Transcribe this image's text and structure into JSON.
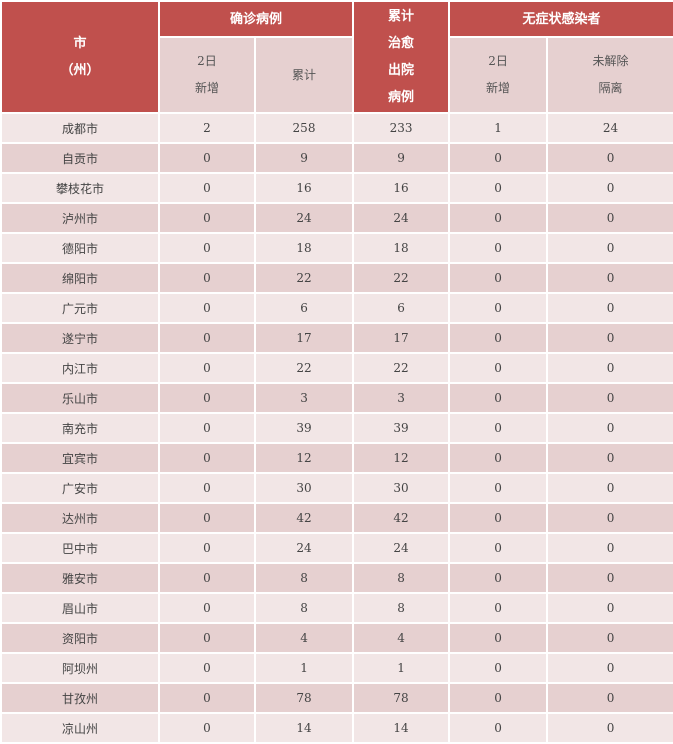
{
  "header": {
    "city": [
      "市",
      "（州）"
    ],
    "confirmed": "确诊病例",
    "confirmed_new": [
      "2日",
      "新增"
    ],
    "confirmed_total": "累计",
    "cured": [
      "累计",
      "治愈",
      "出院",
      "病例"
    ],
    "asymptomatic": "无症状感染者",
    "asym_new": [
      "2日",
      "新增"
    ],
    "asym_unreleased": [
      "未解除",
      "隔离"
    ]
  },
  "rows": [
    [
      "成都市",
      "2",
      "258",
      "233",
      "1",
      "24"
    ],
    [
      "自贡市",
      "0",
      "9",
      "9",
      "0",
      "0"
    ],
    [
      "攀枝花市",
      "0",
      "16",
      "16",
      "0",
      "0"
    ],
    [
      "泸州市",
      "0",
      "24",
      "24",
      "0",
      "0"
    ],
    [
      "德阳市",
      "0",
      "18",
      "18",
      "0",
      "0"
    ],
    [
      "绵阳市",
      "0",
      "22",
      "22",
      "0",
      "0"
    ],
    [
      "广元市",
      "0",
      "6",
      "6",
      "0",
      "0"
    ],
    [
      "遂宁市",
      "0",
      "17",
      "17",
      "0",
      "0"
    ],
    [
      "内江市",
      "0",
      "22",
      "22",
      "0",
      "0"
    ],
    [
      "乐山市",
      "0",
      "3",
      "3",
      "0",
      "0"
    ],
    [
      "南充市",
      "0",
      "39",
      "39",
      "0",
      "0"
    ],
    [
      "宜宾市",
      "0",
      "12",
      "12",
      "0",
      "0"
    ],
    [
      "广安市",
      "0",
      "30",
      "30",
      "0",
      "0"
    ],
    [
      "达州市",
      "0",
      "42",
      "42",
      "0",
      "0"
    ],
    [
      "巴中市",
      "0",
      "24",
      "24",
      "0",
      "0"
    ],
    [
      "雅安市",
      "0",
      "8",
      "8",
      "0",
      "0"
    ],
    [
      "眉山市",
      "0",
      "8",
      "8",
      "0",
      "0"
    ],
    [
      "资阳市",
      "0",
      "4",
      "4",
      "0",
      "0"
    ],
    [
      "阿坝州",
      "0",
      "1",
      "1",
      "0",
      "0"
    ],
    [
      "甘孜州",
      "0",
      "78",
      "78",
      "0",
      "0"
    ],
    [
      "凉山州",
      "0",
      "14",
      "14",
      "0",
      "0"
    ]
  ],
  "colors": {
    "header": "#c0504d",
    "row_light": "#f2e6e6",
    "row_dark": "#e6d0d0"
  }
}
